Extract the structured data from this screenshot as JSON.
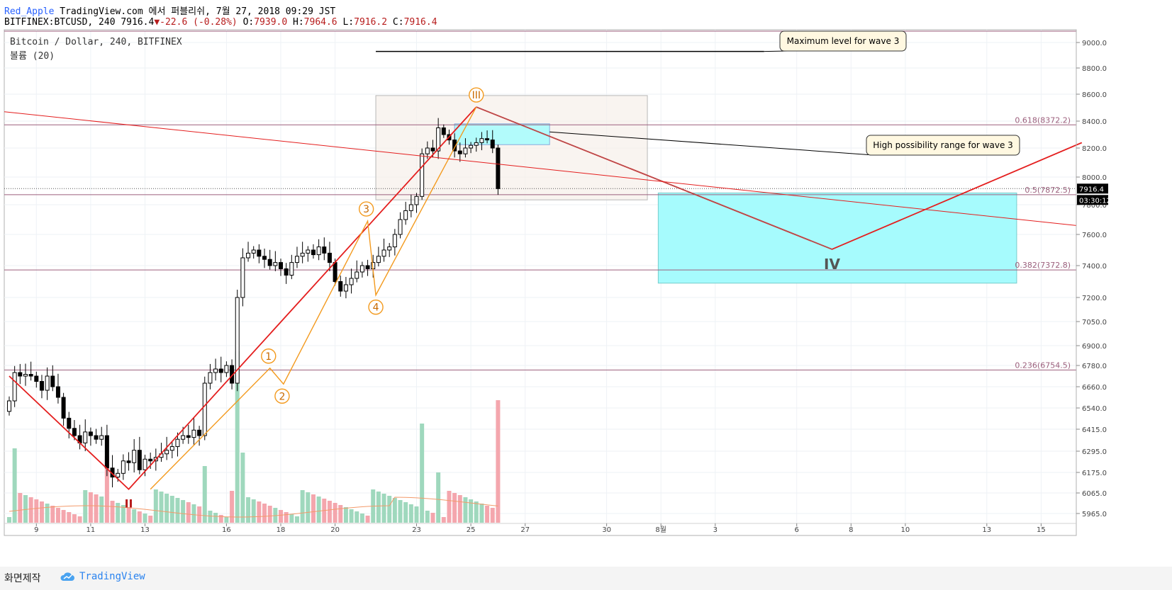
{
  "header": {
    "author": "Red_Apple",
    "published": "TradingView.com 에서 퍼블리쉬, 7월 27, 2018 09:29 JST",
    "symbol_line": "BITFINEX:BTCUSD, 240 7916.4",
    "change": "▼-22.6 (-0.28%)",
    "o_label": "O:",
    "o": "7939.0",
    "h_label": "H:",
    "h": "7964.6",
    "l_label": "L:",
    "l": "7916.2",
    "c_label": "C:",
    "c": "7916.4"
  },
  "legend": {
    "title": "Bitcoin / Dollar, 240, BITFINEX",
    "volume": "볼륨 (20)"
  },
  "footer": {
    "snapshot_label": "화면제작",
    "brand": "TradingView"
  },
  "chart_data": {
    "type": "candlestick",
    "symbol": "BTCUSD",
    "interval": "240",
    "exchange": "BITFINEX",
    "price_axis_ticks": [
      9000,
      8800,
      8600,
      8400,
      8200,
      8000,
      7800,
      7600,
      7400,
      7200,
      7050,
      6900,
      6780,
      6660,
      6540,
      6415,
      6295,
      6175,
      6065,
      5965
    ],
    "x_axis_ticks": [
      "9",
      "11",
      "13",
      "16",
      "18",
      "20",
      "23",
      "25",
      "27",
      "30",
      "8월",
      "3",
      "6",
      "8",
      "10",
      "13",
      "15"
    ],
    "last_price": "7916.4",
    "countdown": "03:30:12",
    "fib_levels": [
      {
        "label": "0.618(8372.2)",
        "price": 8372.2
      },
      {
        "label": "0.5(7872.5)",
        "price": 7872.5
      },
      {
        "label": "0.382(7372.8)",
        "price": 7372.8
      },
      {
        "label": "0.236(6754.5)",
        "price": 6754.5
      }
    ],
    "waves": [
      {
        "label": "II",
        "price": 6085
      },
      {
        "label": "1",
        "price": 6765
      },
      {
        "label": "2",
        "price": 6675
      },
      {
        "label": "3",
        "price": 7690
      },
      {
        "label": "4",
        "price": 7215
      },
      {
        "label": "III",
        "price": 8505
      },
      {
        "label": "IV",
        "price": 7505
      }
    ],
    "annotations": [
      "Maximum level for wave 3",
      "High possibility range for wave 3"
    ],
    "colors": {
      "up": "#ffffff",
      "down": "#000000",
      "volume_up": "#9fd8bd",
      "volume_down": "#f4a6ad",
      "wave_primary": "#e41e1e",
      "wave_minor": "#f39a1e",
      "fib_line": "#9c5f7c",
      "target_zone": "#a6fbfd"
    }
  }
}
